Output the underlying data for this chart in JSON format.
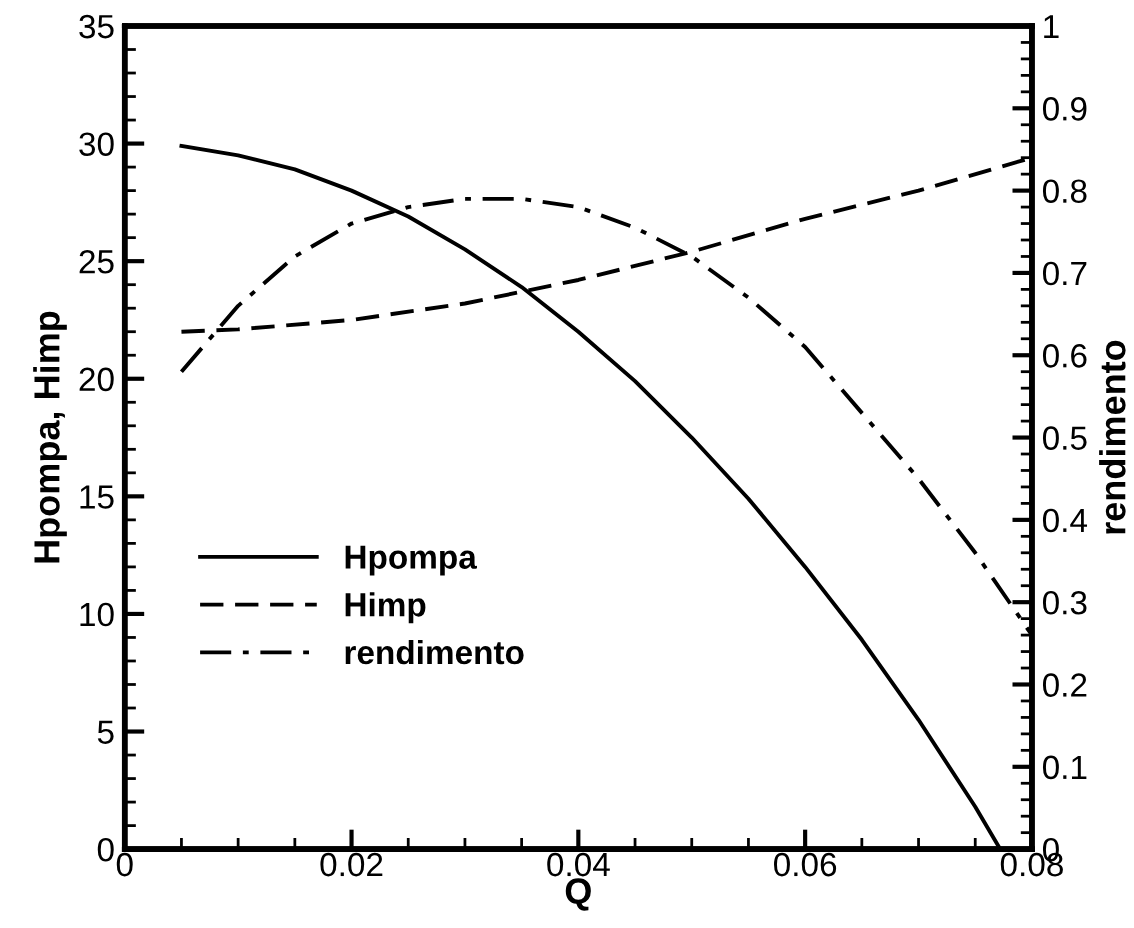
{
  "chart_data": {
    "type": "line",
    "xlabel": "Q",
    "ylabel": "Hpompa, Himp",
    "y2label": "rendimento",
    "xlim": [
      0,
      0.08
    ],
    "xticks": [
      0,
      0.02,
      0.04,
      0.06,
      0.08
    ],
    "ylim": [
      0,
      35
    ],
    "yticks": [
      0,
      5,
      10,
      15,
      20,
      25,
      30,
      35
    ],
    "y2lim": [
      0,
      1
    ],
    "y2ticks": [
      0,
      0.1,
      0.2,
      0.3,
      0.4,
      0.5,
      0.6,
      0.7,
      0.8,
      0.9,
      1
    ],
    "grid": false,
    "legend": "bottom left",
    "marker": "none",
    "series": [
      {
        "name": "Hpompa",
        "color": "#000000",
        "line_style": "solid",
        "x": [
          0.005,
          0.01,
          0.015,
          0.02,
          0.025,
          0.03,
          0.035,
          0.04,
          0.045,
          0.05,
          0.055,
          0.06,
          0.065,
          0.07,
          0.075,
          0.0772
        ],
        "values": [
          29.9,
          29.5,
          28.9,
          28.0,
          26.9,
          25.5,
          23.9,
          22.0,
          19.9,
          17.5,
          14.9,
          12.0,
          8.9,
          5.5,
          1.8,
          0
        ]
      },
      {
        "name": "Himp",
        "color": "#000000",
        "line_style": "dashed",
        "x": [
          0.005,
          0.01,
          0.02,
          0.03,
          0.04,
          0.05,
          0.06,
          0.07,
          0.08
        ],
        "values": [
          22.0,
          22.1,
          22.5,
          23.2,
          24.2,
          25.4,
          26.8,
          28.0,
          29.4
        ]
      },
      {
        "name": "rendimento",
        "color": "#000000",
        "line_style": "dashdot",
        "axis": "y2",
        "x": [
          0.005,
          0.01,
          0.015,
          0.02,
          0.025,
          0.03,
          0.035,
          0.04,
          0.045,
          0.05,
          0.055,
          0.06,
          0.065,
          0.07,
          0.075,
          0.08
        ],
        "values": [
          0.58,
          0.66,
          0.72,
          0.76,
          0.78,
          0.79,
          0.79,
          0.78,
          0.755,
          0.72,
          0.67,
          0.61,
          0.53,
          0.45,
          0.36,
          0.26
        ]
      }
    ]
  }
}
